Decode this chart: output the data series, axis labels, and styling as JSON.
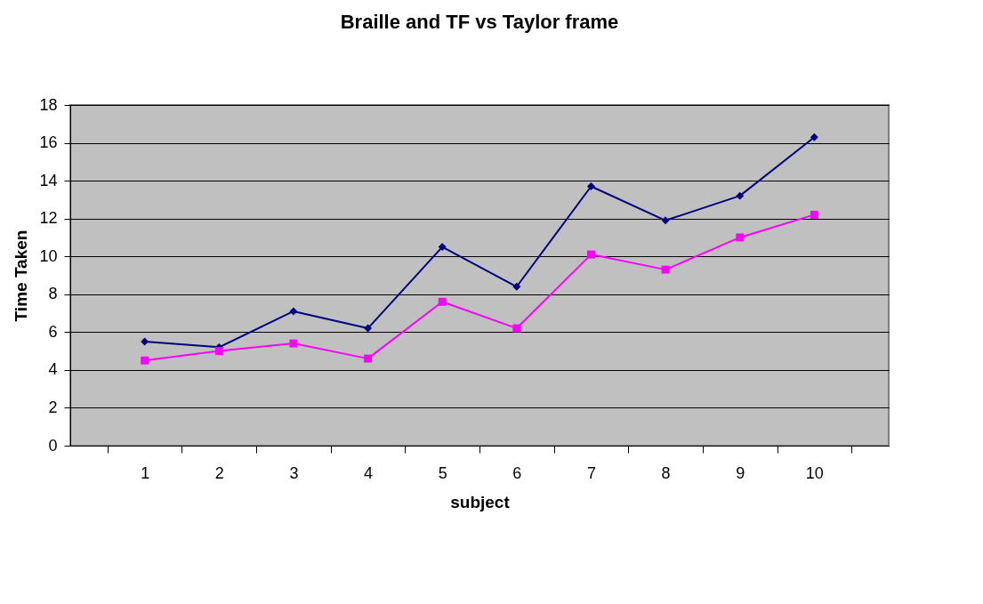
{
  "chart_data": {
    "type": "line",
    "title": "Braille and TF vs Taylor frame",
    "xlabel": "subject",
    "ylabel": "Time Taken",
    "categories": [
      "1",
      "2",
      "3",
      "4",
      "5",
      "6",
      "7",
      "8",
      "9",
      "10"
    ],
    "series": [
      {
        "color": "#000080",
        "marker": "diamond",
        "values": [
          5.5,
          5.2,
          7.1,
          6.2,
          10.5,
          8.4,
          13.7,
          11.9,
          13.2,
          16.3
        ]
      },
      {
        "color": "#ff00ff",
        "marker": "square",
        "values": [
          4.5,
          5.0,
          5.4,
          4.6,
          7.6,
          6.2,
          10.1,
          9.3,
          11.0,
          12.2
        ]
      }
    ],
    "ylim": [
      0,
      18
    ],
    "yticks": [
      0,
      2,
      4,
      6,
      8,
      10,
      12,
      14,
      16,
      18
    ],
    "grid": "y"
  }
}
